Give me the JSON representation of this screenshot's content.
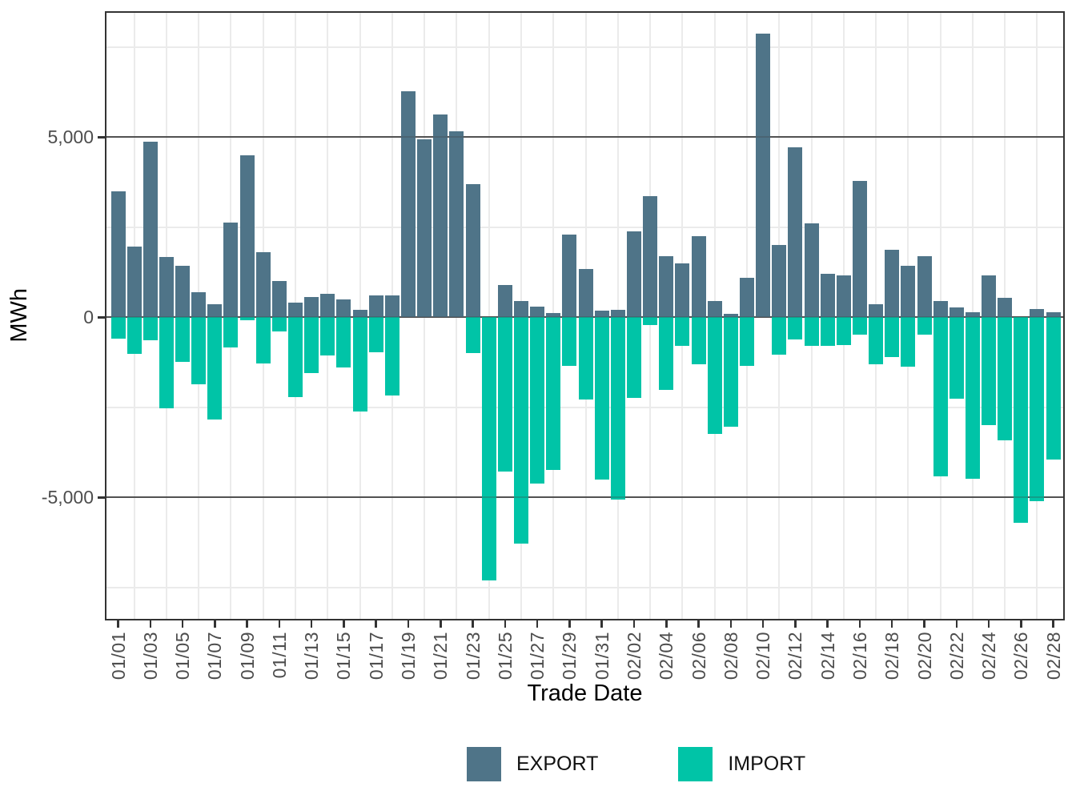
{
  "chart_data": {
    "type": "bar",
    "xlabel": "Trade Date",
    "ylabel": "MWh",
    "ylim": [
      -8400,
      8500
    ],
    "grid": "major+minor",
    "legend_position": "bottom",
    "bar_style": "diverging: EXPORT above zero, IMPORT below zero",
    "categories": [
      "01/01",
      "01/02",
      "01/03",
      "01/04",
      "01/05",
      "01/06",
      "01/07",
      "01/08",
      "01/09",
      "01/10",
      "01/11",
      "01/12",
      "01/13",
      "01/14",
      "01/15",
      "01/16",
      "01/17",
      "01/18",
      "01/19",
      "01/20",
      "01/21",
      "01/22",
      "01/23",
      "01/24",
      "01/25",
      "01/26",
      "01/27",
      "01/28",
      "01/29",
      "01/30",
      "01/31",
      "02/01",
      "02/02",
      "02/03",
      "02/04",
      "02/05",
      "02/06",
      "02/07",
      "02/08",
      "02/09",
      "02/10",
      "02/11",
      "02/12",
      "02/13",
      "02/14",
      "02/15",
      "02/16",
      "02/17",
      "02/18",
      "02/19",
      "02/20",
      "02/21",
      "02/22",
      "02/23",
      "02/24",
      "02/25",
      "02/26",
      "02/27",
      "02/28"
    ],
    "series": [
      {
        "name": "EXPORT",
        "color": "#4F7488",
        "values": [
          3500,
          1950,
          4870,
          1660,
          1420,
          690,
          350,
          2620,
          4500,
          1790,
          1000,
          390,
          560,
          650,
          480,
          200,
          600,
          600,
          6270,
          4940,
          5620,
          5160,
          3700,
          0,
          880,
          440,
          300,
          120,
          2300,
          1340,
          180,
          210,
          2370,
          3360,
          1690,
          1500,
          2250,
          440,
          80,
          1100,
          7870,
          1990,
          4720,
          2600,
          1210,
          1150,
          3780,
          360,
          1870,
          1430,
          1690,
          450,
          260,
          140,
          1150,
          530,
          0,
          220,
          140
        ]
      },
      {
        "name": "IMPORT",
        "color": "#00C4A7",
        "values": [
          -610,
          -1020,
          -640,
          -2530,
          -1240,
          -1870,
          -2850,
          -850,
          -80,
          -1280,
          -410,
          -2230,
          -1560,
          -1060,
          -1400,
          -2620,
          -970,
          -2170,
          0,
          0,
          0,
          0,
          -1010,
          -7310,
          -4280,
          -6290,
          -4620,
          -4250,
          -1360,
          -2280,
          -4510,
          -5060,
          -2250,
          -220,
          -2030,
          -810,
          -1320,
          -3250,
          -3050,
          -1350,
          0,
          -1050,
          -620,
          -810,
          -800,
          -780,
          -480,
          -1300,
          -1110,
          -1380,
          -490,
          -4420,
          -2260,
          -4490,
          -3000,
          -3420,
          -5700,
          -5100,
          -3950
        ]
      }
    ],
    "y_major_ticks": [
      {
        "label": "5,000",
        "value": 5000
      },
      {
        "label": "0",
        "value": 0
      },
      {
        "label": "-5,000",
        "value": -5000
      }
    ],
    "y_minor_ticks": [
      7500,
      2500,
      -2500,
      -7500
    ],
    "x_tick_labels": [
      "01/01",
      "01/03",
      "01/05",
      "01/07",
      "01/09",
      "01/11",
      "01/13",
      "01/15",
      "01/17",
      "01/19",
      "01/21",
      "01/23",
      "01/25",
      "01/27",
      "01/29",
      "01/31",
      "02/02",
      "02/04",
      "02/06",
      "02/08",
      "02/10",
      "02/12",
      "02/14",
      "02/16",
      "02/18",
      "02/20",
      "02/22",
      "02/24",
      "02/26",
      "02/28"
    ]
  },
  "axes": {
    "x_title": "Trade Date",
    "y_title": "MWh"
  },
  "legend": {
    "items": [
      {
        "label": "EXPORT",
        "color": "#4F7488"
      },
      {
        "label": "IMPORT",
        "color": "#00C4A7"
      }
    ]
  },
  "colors": {
    "export": "#4F7488",
    "import": "#00C4A7",
    "grid_major": "#5A5A5A",
    "grid_major_overlay": "rgba(60,60,60,0.28)",
    "grid_minor": "#EBEBEB",
    "axis_text": "#4D4D4D",
    "tick_mark": "#333333",
    "panel_border": "#333333",
    "background": "#FFFFFF"
  }
}
